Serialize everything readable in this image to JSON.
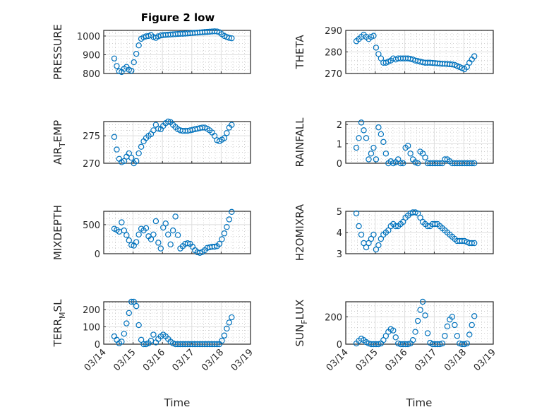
{
  "chart_data": [
    {
      "type": "scatter",
      "title": "Figure 2 low",
      "ylabel": "PRESSURE",
      "xlabel": "",
      "ylim": [
        800,
        1030
      ],
      "yticks": [
        800,
        900,
        1000
      ],
      "xlim_days": [
        0,
        5
      ],
      "xticklabels": [
        "03/14",
        "03/15",
        "03/16",
        "03/17",
        "03/18",
        "03/19"
      ],
      "show_xticklabels": false,
      "grid": true,
      "color": "#0072BD",
      "y": [
        880,
        840,
        812,
        808,
        825,
        835,
        820,
        815,
        860,
        905,
        950,
        985,
        993,
        998,
        1000,
        1005,
        995,
        990,
        998,
        1003,
        1005,
        1006,
        1007,
        1008,
        1009,
        1010,
        1011,
        1012,
        1012,
        1013,
        1014,
        1015,
        1016,
        1017,
        1018,
        1019,
        1020,
        1021,
        1022,
        1023,
        1024,
        1025,
        1024,
        1020,
        1010,
        1000,
        995,
        990,
        988
      ]
    },
    {
      "type": "scatter",
      "title": "",
      "ylabel": "AIR_TEMP",
      "xlabel": "",
      "ylim": [
        270,
        277.6
      ],
      "yticks": [
        270,
        275
      ],
      "xlim_days": [
        0,
        5
      ],
      "xticklabels": [
        "03/14",
        "03/15",
        "03/16",
        "03/17",
        "03/18",
        "03/19"
      ],
      "show_xticklabels": false,
      "grid": true,
      "color": "#0072BD",
      "y": [
        274.8,
        272.5,
        270.8,
        270.2,
        270.4,
        271.2,
        271.8,
        271,
        270,
        270.4,
        271.8,
        273,
        274,
        274.6,
        275,
        275.3,
        276,
        277,
        276.3,
        276.2,
        276.8,
        277.3,
        277.6,
        277.5,
        277,
        276.6,
        276.2,
        276,
        275.9,
        275.9,
        275.9,
        276,
        276.1,
        276.2,
        276.3,
        276.4,
        276.5,
        276.5,
        276.3,
        276,
        275.6,
        275,
        274.2,
        274,
        274.3,
        274.6,
        275.5,
        276.5,
        277
      ]
    },
    {
      "type": "scatter",
      "title": "",
      "ylabel": "MIXDEPTH",
      "xlabel": "",
      "ylim": [
        0,
        730
      ],
      "yticks": [
        0,
        500
      ],
      "xlim_days": [
        0,
        5
      ],
      "xticklabels": [
        "03/14",
        "03/15",
        "03/16",
        "03/17",
        "03/18",
        "03/19"
      ],
      "show_xticklabels": false,
      "grid": true,
      "color": "#0072BD",
      "y": [
        430,
        410,
        380,
        540,
        400,
        320,
        230,
        150,
        140,
        200,
        330,
        430,
        400,
        440,
        300,
        250,
        330,
        560,
        190,
        90,
        450,
        520,
        330,
        160,
        400,
        640,
        320,
        90,
        130,
        170,
        180,
        170,
        120,
        60,
        25,
        15,
        30,
        60,
        100,
        110,
        120,
        120,
        130,
        170,
        250,
        350,
        460,
        590,
        720
      ]
    },
    {
      "type": "scatter",
      "title": "",
      "ylabel": "TERR_MSL",
      "xlabel": "Time",
      "ylim": [
        0,
        245
      ],
      "yticks": [
        0,
        100,
        200
      ],
      "xlim_days": [
        0,
        5
      ],
      "xticklabels": [
        "03/14",
        "03/15",
        "03/16",
        "03/17",
        "03/18",
        "03/19"
      ],
      "show_xticklabels": true,
      "grid": true,
      "color": "#0072BD",
      "y": [
        45,
        25,
        5,
        15,
        60,
        120,
        180,
        245,
        245,
        220,
        110,
        25,
        0,
        0,
        5,
        20,
        55,
        10,
        30,
        45,
        55,
        45,
        30,
        15,
        5,
        0,
        0,
        0,
        0,
        0,
        0,
        0,
        0,
        0,
        0,
        0,
        0,
        0,
        0,
        0,
        0,
        0,
        0,
        0,
        20,
        50,
        90,
        125,
        155
      ]
    },
    {
      "type": "scatter",
      "title": "",
      "ylabel": "THETA",
      "xlabel": "",
      "ylim": [
        270,
        290
      ],
      "yticks": [
        270,
        280,
        290
      ],
      "xlim_days": [
        0,
        5
      ],
      "xticklabels": [
        "03/14",
        "03/15",
        "03/16",
        "03/17",
        "03/18",
        "03/19"
      ],
      "show_xticklabels": false,
      "grid": true,
      "color": "#0072BD",
      "y": [
        285,
        286,
        287,
        288,
        287,
        286,
        287,
        287.5,
        282,
        279,
        277,
        275,
        275,
        275.5,
        276,
        277,
        276.5,
        277,
        277,
        277,
        277,
        277,
        276.8,
        276.5,
        276,
        275.8,
        275.5,
        275.2,
        275,
        275,
        275,
        274.9,
        274.8,
        274.7,
        274.6,
        274.5,
        274.5,
        274.4,
        274.3,
        274.2,
        274,
        273.5,
        273,
        272.5,
        272,
        273,
        275,
        276.5,
        278
      ]
    },
    {
      "type": "scatter",
      "title": "",
      "ylabel": "RAINFALL",
      "xlabel": "",
      "ylim": [
        0,
        2.15
      ],
      "yticks": [
        0,
        1,
        2
      ],
      "xlim_days": [
        0,
        5
      ],
      "xticklabels": [
        "03/14",
        "03/15",
        "03/16",
        "03/17",
        "03/18",
        "03/19"
      ],
      "show_xticklabels": false,
      "grid": true,
      "color": "#0072BD",
      "y": [
        0.8,
        1.3,
        2.1,
        1.7,
        1.3,
        0.2,
        0.5,
        0.8,
        0.2,
        1.85,
        1.5,
        1.1,
        0.5,
        0,
        0.1,
        0,
        0.05,
        0.2,
        0,
        0,
        0.8,
        0.9,
        0.5,
        0.2,
        0.05,
        0,
        0.6,
        0.5,
        0.3,
        0,
        0,
        0,
        0,
        0,
        0,
        0,
        0.2,
        0.2,
        0.1,
        0,
        0,
        0,
        0,
        0,
        0,
        0,
        0,
        0,
        0
      ]
    },
    {
      "type": "scatter",
      "title": "",
      "ylabel": "H2OMIXRA",
      "xlabel": "",
      "ylim": [
        3,
        5
      ],
      "yticks": [
        3,
        4,
        5
      ],
      "xlim_days": [
        0,
        5
      ],
      "xticklabels": [
        "03/14",
        "03/15",
        "03/16",
        "03/17",
        "03/18",
        "03/19"
      ],
      "show_xticklabels": false,
      "grid": true,
      "color": "#0072BD",
      "y": [
        4.9,
        4.3,
        3.9,
        3.5,
        3.3,
        3.5,
        3.7,
        3.9,
        3.2,
        3.4,
        3.7,
        3.9,
        4.0,
        4.1,
        4.3,
        4.4,
        4.3,
        4.3,
        4.4,
        4.5,
        4.7,
        4.8,
        4.9,
        4.95,
        4.95,
        4.9,
        4.7,
        4.5,
        4.4,
        4.3,
        4.3,
        4.4,
        4.4,
        4.4,
        4.3,
        4.2,
        4.1,
        4.0,
        3.9,
        3.8,
        3.7,
        3.6,
        3.6,
        3.6,
        3.6,
        3.55,
        3.5,
        3.5,
        3.5
      ]
    },
    {
      "type": "scatter",
      "title": "",
      "ylabel": "SUN_FLUX",
      "xlabel": "Time",
      "ylim": [
        0,
        310
      ],
      "yticks": [
        0,
        200
      ],
      "xlim_days": [
        0,
        5
      ],
      "xticklabels": [
        "03/14",
        "03/15",
        "03/16",
        "03/17",
        "03/18",
        "03/19"
      ],
      "show_xticklabels": true,
      "grid": true,
      "color": "#0072BD",
      "y": [
        5,
        25,
        40,
        30,
        15,
        5,
        0,
        0,
        0,
        0,
        5,
        30,
        60,
        90,
        110,
        100,
        50,
        5,
        0,
        0,
        0,
        0,
        5,
        30,
        90,
        170,
        250,
        310,
        210,
        80,
        10,
        0,
        0,
        0,
        0,
        5,
        60,
        130,
        180,
        200,
        140,
        60,
        5,
        0,
        0,
        5,
        70,
        140,
        205
      ]
    }
  ],
  "x_start_day": 0.36,
  "x_step_day": 0.0833
}
